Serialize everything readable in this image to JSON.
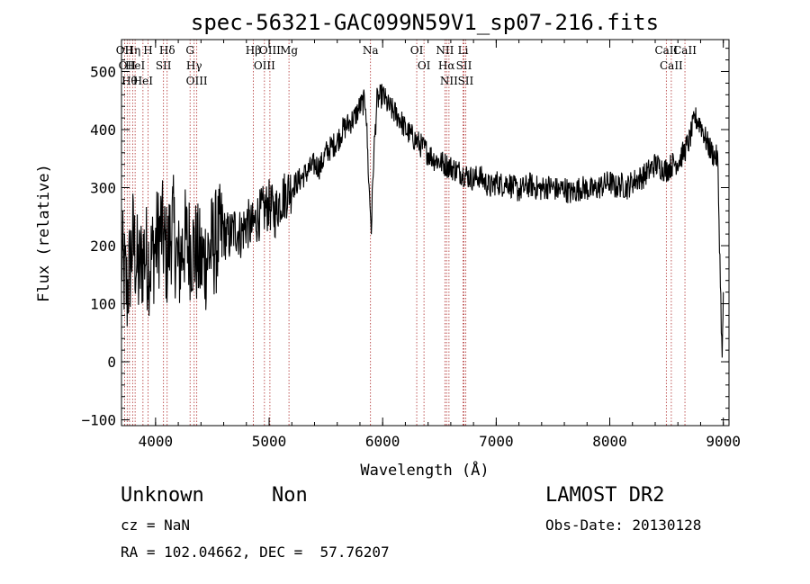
{
  "chart_data": {
    "type": "line",
    "title": "spec-56321-GAC099N59V1_sp07-216.fits",
    "xlabel": "Wavelength (Å)",
    "ylabel": "Flux (relative)",
    "xlim": [
      3700,
      9050
    ],
    "ylim": [
      -110,
      555
    ],
    "xticks": [
      4000,
      5000,
      6000,
      7000,
      8000,
      9000
    ],
    "yticks": [
      -100,
      0,
      100,
      200,
      300,
      400,
      500
    ],
    "grid": false,
    "series": [
      {
        "color": "#000000",
        "x": [
          3700,
          3750,
          3800,
          3850,
          3900,
          3950,
          4000,
          4050,
          4100,
          4150,
          4200,
          4250,
          4300,
          4350,
          4400,
          4450,
          4500,
          4550,
          4600,
          4650,
          4700,
          4750,
          4800,
          4850,
          4900,
          4950,
          5000,
          5050,
          5100,
          5150,
          5200,
          5250,
          5300,
          5350,
          5400,
          5450,
          5500,
          5550,
          5600,
          5650,
          5700,
          5750,
          5800,
          5850,
          5880,
          5900,
          5920,
          5950,
          6000,
          6050,
          6100,
          6150,
          6200,
          6250,
          6300,
          6350,
          6400,
          6450,
          6500,
          6550,
          6600,
          6650,
          6700,
          6750,
          6800,
          6850,
          6900,
          6950,
          7000,
          7050,
          7100,
          7150,
          7200,
          7250,
          7300,
          7350,
          7400,
          7450,
          7500,
          7550,
          7600,
          7650,
          7700,
          7750,
          7800,
          7850,
          7900,
          7950,
          8000,
          8050,
          8100,
          8150,
          8200,
          8250,
          8300,
          8350,
          8400,
          8450,
          8500,
          8550,
          8600,
          8650,
          8700,
          8750,
          8800,
          8850,
          8900,
          8950,
          8990,
          9000
        ],
        "values": [
          180,
          120,
          210,
          150,
          190,
          170,
          200,
          230,
          180,
          240,
          160,
          210,
          200,
          190,
          170,
          180,
          200,
          210,
          220,
          215,
          230,
          220,
          240,
          230,
          250,
          260,
          270,
          255,
          280,
          290,
          300,
          310,
          320,
          330,
          340,
          335,
          360,
          370,
          380,
          400,
          410,
          420,
          440,
          450,
          300,
          230,
          350,
          450,
          460,
          440,
          430,
          420,
          400,
          390,
          380,
          370,
          360,
          350,
          345,
          340,
          335,
          330,
          325,
          320,
          315,
          320,
          310,
          300,
          310,
          305,
          310,
          300,
          295,
          300,
          305,
          300,
          298,
          302,
          300,
          295,
          300,
          290,
          295,
          300,
          298,
          295,
          300,
          305,
          310,
          300,
          305,
          300,
          310,
          315,
          320,
          330,
          340,
          335,
          330,
          340,
          345,
          360,
          380,
          420,
          410,
          380,
          360,
          350,
          0,
          120
        ]
      }
    ],
    "annotations": [
      {
        "wavelength": 3727,
        "label": "OII"
      },
      {
        "wavelength": 3750,
        "label": "OII"
      },
      {
        "wavelength": 3771,
        "label": "Hθ"
      },
      {
        "wavelength": 3798,
        "label": "Hη"
      },
      {
        "wavelength": 3820,
        "label": "HeI"
      },
      {
        "wavelength": 3889,
        "label": "HeI"
      },
      {
        "wavelength": 3934,
        "label": "H"
      },
      {
        "wavelength": 4070,
        "label": "SII"
      },
      {
        "wavelength": 4102,
        "label": "Hδ"
      },
      {
        "wavelength": 4304,
        "label": "G"
      },
      {
        "wavelength": 4340,
        "label": "Hγ"
      },
      {
        "wavelength": 4363,
        "label": "OIII"
      },
      {
        "wavelength": 4861,
        "label": "Hβ"
      },
      {
        "wavelength": 4959,
        "label": "OIII"
      },
      {
        "wavelength": 5007,
        "label": "OIII"
      },
      {
        "wavelength": 5175,
        "label": "Mg"
      },
      {
        "wavelength": 5893,
        "label": "Na"
      },
      {
        "wavelength": 6300,
        "label": "OI"
      },
      {
        "wavelength": 6364,
        "label": "OI"
      },
      {
        "wavelength": 6548,
        "label": "NII"
      },
      {
        "wavelength": 6563,
        "label": "Hα"
      },
      {
        "wavelength": 6584,
        "label": "NII"
      },
      {
        "wavelength": 6708,
        "label": "Li"
      },
      {
        "wavelength": 6716,
        "label": "SII"
      },
      {
        "wavelength": 6731,
        "label": "SII"
      },
      {
        "wavelength": 8498,
        "label": "CaII"
      },
      {
        "wavelength": 8542,
        "label": "CaII"
      },
      {
        "wavelength": 8662,
        "label": "CaII"
      }
    ]
  },
  "info": {
    "class_text": "Unknown",
    "subclass_text": "Non",
    "survey": "LAMOST DR2",
    "cz": "cz = NaN",
    "obs_date": "Obs-Date: 20130128",
    "coords": "RA = 102.04662, DEC =  57.76207"
  }
}
